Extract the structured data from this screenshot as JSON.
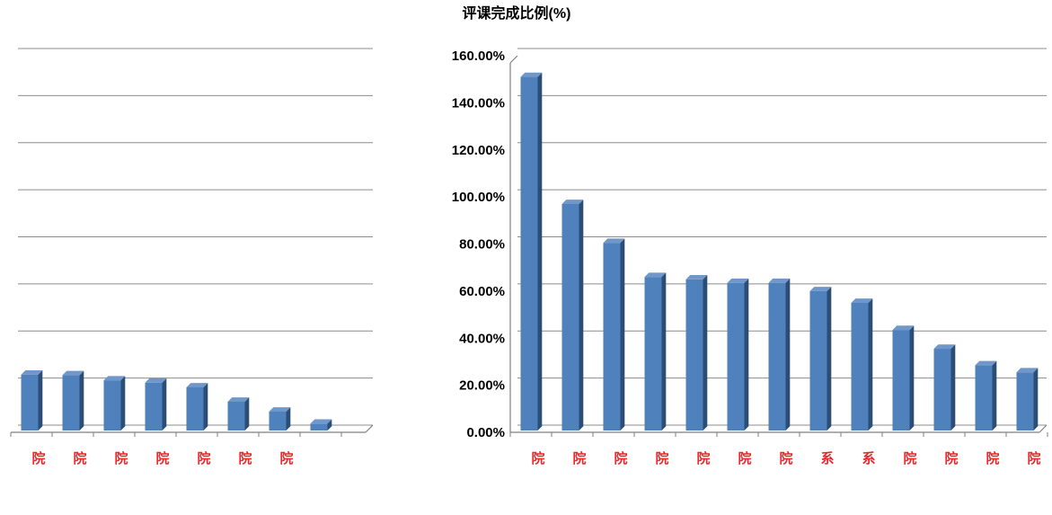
{
  "chart_data": [
    {
      "type": "bar",
      "title": "",
      "xlabel": "",
      "ylabel": "",
      "categories": [
        "院",
        "院",
        "院",
        "院",
        "院",
        "院",
        "院",
        ""
      ],
      "values": [
        24.5,
        24.3,
        22.1,
        21.1,
        19.1,
        13.0,
        8.8,
        3.7
      ],
      "ylim": [
        0,
        160
      ],
      "tick_step": 20,
      "grid": true,
      "bar_color": "#4f81bd"
    },
    {
      "type": "bar",
      "title": "评课完成比例(%)",
      "xlabel": "",
      "ylabel": "",
      "categories": [
        "院",
        "院",
        "院",
        "院",
        "院",
        "院",
        "院",
        "系",
        "系",
        "院",
        "院",
        "院",
        "院"
      ],
      "values": [
        151.0,
        97.0,
        80.5,
        66.0,
        65.0,
        63.5,
        63.5,
        60.0,
        55.0,
        43.5,
        35.5,
        28.5,
        25.5
      ],
      "ylim": [
        0,
        160
      ],
      "tick_step": 20,
      "ytick_labels": [
        "0.00%",
        "20.00%",
        "40.00%",
        "60.00%",
        "80.00%",
        "100.00%",
        "120.00%",
        "140.00%",
        "160.00%"
      ],
      "grid": true,
      "bar_color": "#4f81bd"
    }
  ],
  "colors": {
    "category_label": "#e8282b",
    "gridline": "#8c8c8c",
    "axis": "#7f7f7f",
    "bar_front": "#4f81bd",
    "bar_side": "#2c4d75",
    "bar_top": "#6f97c9"
  }
}
